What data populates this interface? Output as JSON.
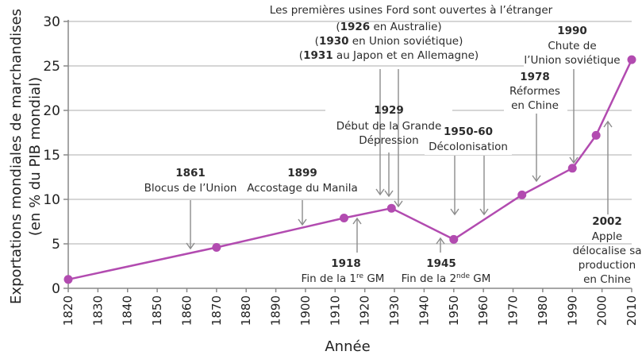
{
  "chart_data": {
    "type": "line",
    "title": "",
    "xlabel": "Année",
    "ylabel": "Exportations mondiales de marchandises (en % du PIB mondial)",
    "ylabel_lines": [
      "Exportations mondiales de marchandises",
      "(en % du PIB mondial)"
    ],
    "xlim": [
      1820,
      2010
    ],
    "ylim": [
      0,
      30
    ],
    "grid": "horizontal",
    "x_ticks": [
      1820,
      1830,
      1840,
      1850,
      1860,
      1870,
      1880,
      1890,
      1900,
      1910,
      1920,
      1930,
      1940,
      1950,
      1960,
      1970,
      1980,
      1990,
      2000,
      2010
    ],
    "y_ticks": [
      0,
      5,
      10,
      15,
      20,
      25,
      30
    ],
    "series": [
      {
        "name": "Exportations mondiales de marchandises",
        "color": "#b24bb0",
        "x": [
          1820,
          1870,
          1913,
          1929,
          1950,
          1973,
          1990,
          1998,
          2010
        ],
        "values": [
          1.0,
          4.6,
          7.9,
          9.0,
          5.5,
          10.5,
          13.5,
          17.2,
          25.7
        ]
      }
    ],
    "annotations": [
      {
        "year": "1861",
        "text": [
          "Blocus de l’Union"
        ],
        "arrow_x": 1861,
        "direction": "down"
      },
      {
        "year": "1899",
        "text": [
          "Accostage du Manila"
        ],
        "arrow_x": 1899,
        "direction": "down"
      },
      {
        "year": "1918",
        "text": [
          "Fin de la 1re GM"
        ],
        "arrow_x": 1918,
        "direction": "up"
      },
      {
        "year": "",
        "text": [
          "Les premières usines Ford sont ouvertes à l’étranger",
          "(1926 en Australie)",
          "(1930 en Union soviétique)",
          "(1931 au Japon et en Allemagne)"
        ],
        "arrow_x": [
          1926,
          1931
        ],
        "direction": "down"
      },
      {
        "year": "1929",
        "text": [
          "Début de la Grande",
          "Dépression"
        ],
        "arrow_x": 1929,
        "direction": "down"
      },
      {
        "year": "1945",
        "text": [
          "Fin de la 2nde GM"
        ],
        "arrow_x": 1945,
        "direction": "up"
      },
      {
        "year": "1950-60",
        "text": [
          "Décolonisation"
        ],
        "arrow_x": [
          1950,
          1960
        ],
        "direction": "down"
      },
      {
        "year": "1978",
        "text": [
          "Réformes",
          "en Chine"
        ],
        "arrow_x": 1978,
        "direction": "down"
      },
      {
        "year": "1990",
        "text": [
          "Chute de",
          "l’Union soviétique"
        ],
        "arrow_x": 1990,
        "direction": "down"
      },
      {
        "year": "2002",
        "text": [
          "Apple",
          "délocalise sa",
          "production",
          "en Chine"
        ],
        "arrow_x": 2002,
        "direction": "up"
      }
    ]
  },
  "labels": {
    "ylabel_1": "Exportations mondiales de marchandises",
    "ylabel_2": "(en % du PIB mondial)",
    "xlabel": "Année",
    "ford": {
      "line1": "Les premières usines Ford sont ouvertes à l’étranger",
      "l2_year": "1926",
      "l2_text": " en Australie)",
      "l3_year": "1930",
      "l3_text": " en Union soviétique)",
      "l4_year": "1931",
      "l4_text": " au Japon et en Allemagne)",
      "open_paren": "("
    },
    "a1861": {
      "year": "1861",
      "text": "Blocus de l’Union"
    },
    "a1899": {
      "year": "1899",
      "text": "Accostage du Manila"
    },
    "a1918": {
      "year": "1918",
      "text_pre": "Fin de la 1",
      "sup": "re",
      "text_post": " GM"
    },
    "a1929": {
      "year": "1929",
      "line1": "Début de la Grande",
      "line2": "Dépression"
    },
    "a1945": {
      "year": "1945",
      "text_pre": "Fin de la 2",
      "sup": "nde",
      "text_post": " GM"
    },
    "a1950": {
      "year": "1950-60",
      "text": "Décolonisation"
    },
    "a1978": {
      "year": "1978",
      "line1": "Réformes",
      "line2": "en Chine"
    },
    "a1990": {
      "year": "1990",
      "line1": "Chute de",
      "line2": "l’Union soviétique"
    },
    "a2002": {
      "year": "2002",
      "line1": "Apple",
      "line2": "délocalise sa",
      "line3": "production",
      "line4": "en Chine"
    }
  },
  "colors": {
    "line": "#b24bb0",
    "grid": "#c8c8c8",
    "axis": "#888888",
    "arrow": "#8c8c8c",
    "text": "#222222"
  }
}
